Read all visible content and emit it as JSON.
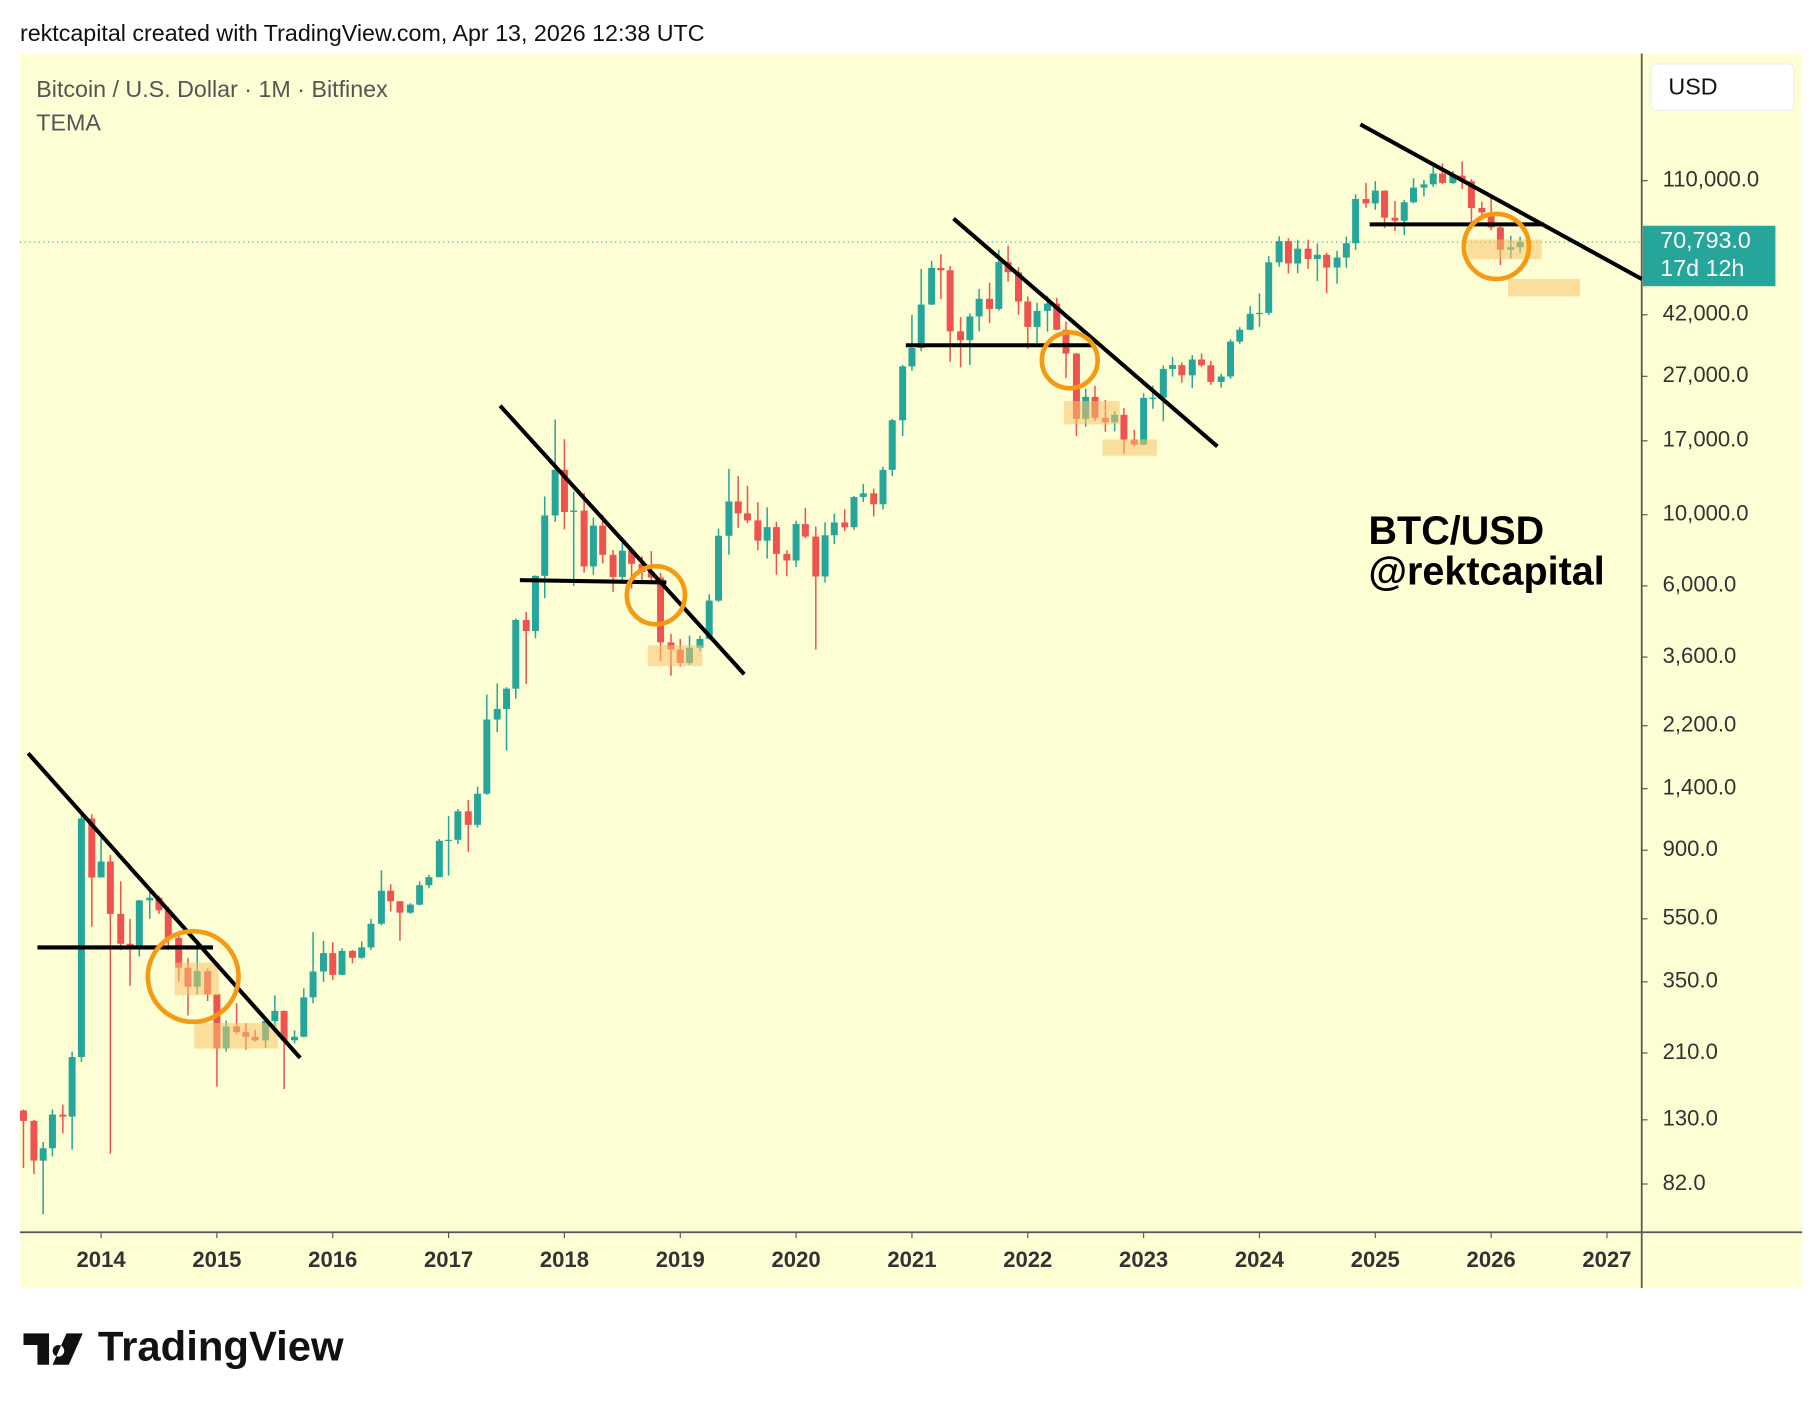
{
  "header": {
    "attribution": "rektcapital created with TradingView.com, Apr 13, 2026 12:38 UTC"
  },
  "chart_data": {
    "type": "candlestick",
    "title": "Bitcoin / U.S. Dollar · 1M · Bitfinex",
    "indicator": "TEMA",
    "currency": "USD",
    "x": [
      2013.33,
      2013.42,
      2013.5,
      2013.58,
      2013.67,
      2013.75,
      2013.83,
      2013.92,
      2014,
      2014.08,
      2014.17,
      2014.25,
      2014.33,
      2014.42,
      2014.5,
      2014.58,
      2014.67,
      2014.75,
      2014.83,
      2014.92,
      2015,
      2015.08,
      2015.17,
      2015.25,
      2015.33,
      2015.42,
      2015.5,
      2015.58,
      2015.67,
      2015.75,
      2015.83,
      2015.92,
      2016,
      2016.08,
      2016.17,
      2016.25,
      2016.33,
      2016.42,
      2016.5,
      2016.58,
      2016.67,
      2016.75,
      2016.83,
      2016.92,
      2017,
      2017.08,
      2017.17,
      2017.25,
      2017.33,
      2017.42,
      2017.5,
      2017.58,
      2017.67,
      2017.75,
      2017.83,
      2017.92,
      2018,
      2018.08,
      2018.17,
      2018.25,
      2018.33,
      2018.42,
      2018.5,
      2018.58,
      2018.67,
      2018.75,
      2018.83,
      2018.92,
      2019,
      2019.08,
      2019.17,
      2019.25,
      2019.33,
      2019.42,
      2019.5,
      2019.58,
      2019.67,
      2019.75,
      2019.83,
      2019.92,
      2020,
      2020.08,
      2020.17,
      2020.25,
      2020.33,
      2020.42,
      2020.5,
      2020.58,
      2020.67,
      2020.75,
      2020.83,
      2020.92,
      2021,
      2021.08,
      2021.17,
      2021.25,
      2021.33,
      2021.42,
      2021.5,
      2021.58,
      2021.67,
      2021.75,
      2021.83,
      2021.92,
      2022,
      2022.08,
      2022.17,
      2022.25,
      2022.33,
      2022.42,
      2022.5,
      2022.58,
      2022.67,
      2022.75,
      2022.83,
      2022.92,
      2023,
      2023.08,
      2023.17,
      2023.25,
      2023.33,
      2023.42,
      2023.5,
      2023.58,
      2023.67,
      2023.75,
      2023.83,
      2023.92,
      2024,
      2024.08,
      2024.17,
      2024.25,
      2024.33,
      2024.42,
      2024.5,
      2024.58,
      2024.67,
      2024.75,
      2024.83,
      2024.92,
      2025,
      2025.08,
      2025.17,
      2025.25,
      2025.33,
      2025.42,
      2025.5,
      2025.58,
      2025.67,
      2025.75,
      2025.83,
      2025.92,
      2026,
      2026.08,
      2026.17,
      2026.25
    ],
    "open": [
      139,
      129,
      97,
      106,
      135,
      133,
      204,
      1130,
      740,
      830,
      570,
      460,
      445,
      628,
      640,
      585,
      480,
      387,
      338,
      378,
      320,
      217,
      254,
      244,
      236,
      230,
      264,
      284,
      230,
      236,
      313,
      377,
      430,
      368,
      437,
      416,
      448,
      531,
      673,
      624,
      575,
      609,
      700,
      742,
      963,
      970,
      1190,
      1080,
      1350,
      2300,
      2480,
      2870,
      4700,
      4340,
      6450,
      9950,
      13800,
      10200,
      10300,
      6900,
      9250,
      7500,
      6400,
      7730,
      7030,
      6630,
      6370,
      4000,
      3800,
      3450,
      3850,
      4100,
      5400,
      8600,
      11000,
      10100,
      9600,
      8300,
      9150,
      7550,
      7200,
      9350,
      8550,
      6420,
      8630,
      9460,
      9140,
      11350,
      11660,
      10780,
      13800,
      19700,
      29000,
      33100,
      45200,
      58800,
      57800,
      37300,
      35000,
      41500,
      47100,
      43800,
      61300,
      57000,
      46200,
      38500,
      43200,
      45500,
      37700,
      31800,
      19900,
      23300,
      20050,
      19420,
      20490,
      17160,
      16540,
      23130,
      23150,
      28480,
      29260,
      27200,
      30470,
      29230,
      25940,
      26970,
      34650,
      37720,
      42280,
      42580,
      61200,
      71300,
      60700,
      67500,
      62700,
      64600,
      58970,
      63330,
      70200,
      96400,
      93400,
      102400,
      84300,
      82500,
      94200,
      104600,
      107100,
      115700,
      108200,
      114000,
      109500,
      90400,
      87600,
      78600,
      67000,
      68200
    ],
    "high": [
      140,
      130,
      111,
      140,
      145,
      212,
      1175,
      1165,
      1000,
      870,
      720,
      550,
      630,
      680,
      650,
      600,
      490,
      415,
      460,
      385,
      320,
      265,
      300,
      260,
      248,
      268,
      318,
      285,
      247,
      334,
      500,
      470,
      465,
      445,
      440,
      468,
      550,
      780,
      705,
      625,
      615,
      720,
      755,
      975,
      1150,
      1210,
      1290,
      1420,
      2750,
      2980,
      2900,
      4750,
      4980,
      6470,
      11400,
      19800,
      17200,
      11800,
      11700,
      9800,
      9990,
      7770,
      8500,
      7760,
      7420,
      7700,
      6600,
      4250,
      4100,
      4200,
      4200,
      5650,
      9050,
      13900,
      13200,
      12300,
      10950,
      10550,
      9510,
      7750,
      9580,
      10500,
      9180,
      9470,
      10080,
      10400,
      11450,
      12470,
      12070,
      14100,
      19900,
      29300,
      41950,
      58350,
      61800,
      64900,
      59600,
      41300,
      42400,
      50500,
      52900,
      67000,
      69000,
      59100,
      47900,
      45800,
      48200,
      47400,
      40000,
      31900,
      24700,
      25200,
      22800,
      21000,
      21500,
      18400,
      23900,
      25250,
      29200,
      31000,
      29850,
      31400,
      31800,
      30200,
      27500,
      35200,
      38450,
      44700,
      48970,
      64000,
      73800,
      72800,
      71950,
      72000,
      70000,
      65600,
      66500,
      73600,
      99800,
      108300,
      109600,
      102500,
      95000,
      95800,
      111900,
      110500,
      123200,
      124500,
      117900,
      126200,
      111200,
      94600,
      97900,
      79500,
      74000,
      73500
    ],
    "low": [
      92,
      88,
      66,
      100,
      118,
      105,
      197,
      520,
      740,
      102,
      440,
      340,
      420,
      550,
      570,
      440,
      350,
      275,
      320,
      305,
      165,
      212,
      240,
      215,
      228,
      218,
      253,
      162,
      225,
      235,
      300,
      350,
      355,
      368,
      400,
      413,
      440,
      525,
      580,
      470,
      570,
      605,
      685,
      742,
      750,
      940,
      890,
      1060,
      1340,
      2100,
      1840,
      2670,
      2970,
      4120,
      5500,
      9500,
      9000,
      6000,
      6600,
      6500,
      7050,
      5750,
      6100,
      5880,
      6100,
      6200,
      3500,
      3150,
      3360,
      3400,
      3750,
      4080,
      5350,
      7500,
      9100,
      9400,
      7750,
      7300,
      6500,
      6430,
      6880,
      8450,
      3800,
      6150,
      8100,
      8900,
      8970,
      10950,
      9880,
      10380,
      13200,
      17600,
      28100,
      32400,
      45000,
      47000,
      30000,
      28800,
      29300,
      37300,
      39600,
      43300,
      53300,
      42000,
      32900,
      34300,
      37200,
      37600,
      26700,
      17600,
      18800,
      19600,
      18150,
      18200,
      15500,
      16300,
      16500,
      21400,
      19550,
      26950,
      25800,
      24800,
      28900,
      25400,
      24900,
      26550,
      34100,
      37600,
      38550,
      41900,
      59300,
      56500,
      56600,
      58400,
      53500,
      49000,
      52500,
      58900,
      66900,
      90500,
      89200,
      78200,
      76600,
      74500,
      93400,
      98200,
      105300,
      107300,
      107300,
      103500,
      80600,
      84400,
      77000,
      60000,
      63000,
      65500
    ],
    "close": [
      129,
      97,
      106,
      135,
      133,
      204,
      1130,
      740,
      830,
      570,
      460,
      445,
      628,
      640,
      585,
      480,
      387,
      338,
      378,
      320,
      217,
      254,
      244,
      236,
      230,
      264,
      284,
      230,
      236,
      313,
      377,
      430,
      368,
      437,
      416,
      448,
      531,
      673,
      624,
      575,
      609,
      700,
      742,
      963,
      970,
      1190,
      1080,
      1350,
      2300,
      2480,
      2870,
      4700,
      4340,
      6450,
      9950,
      13800,
      10200,
      10300,
      6900,
      9250,
      7500,
      6400,
      7730,
      7030,
      6630,
      6370,
      4000,
      3800,
      3450,
      3850,
      4100,
      5400,
      8600,
      11000,
      10100,
      9600,
      8300,
      9150,
      7550,
      7200,
      9350,
      8550,
      6420,
      8630,
      9460,
      9140,
      11350,
      11660,
      10780,
      13800,
      19700,
      29000,
      33100,
      45200,
      58800,
      57800,
      37300,
      35000,
      41500,
      47100,
      43800,
      61300,
      57000,
      46200,
      38500,
      43200,
      45500,
      37700,
      31800,
      19900,
      23300,
      20050,
      19420,
      20490,
      17160,
      16540,
      23130,
      23150,
      28480,
      29260,
      27200,
      30470,
      29230,
      25940,
      26970,
      34650,
      37720,
      42280,
      42580,
      61200,
      71300,
      60700,
      67500,
      62700,
      64600,
      58970,
      63330,
      70200,
      96400,
      93400,
      102400,
      84300,
      82500,
      94200,
      104600,
      107100,
      115700,
      108200,
      114000,
      109500,
      90400,
      87600,
      78600,
      67000,
      68200,
      70793
    ],
    "up_color": "#26a69a",
    "down_color": "#ef5350",
    "log_scale": true,
    "xlim": [
      2013.3,
      2027.3
    ],
    "xticks": [
      2014,
      2015,
      2016,
      2017,
      2018,
      2019,
      2020,
      2021,
      2022,
      2023,
      2024,
      2025,
      2026,
      2027
    ],
    "ylim": [
      58,
      274000
    ],
    "yticks": [
      {
        "value": 82,
        "label": "82.0"
      },
      {
        "value": 130,
        "label": "130.0"
      },
      {
        "value": 210,
        "label": "210.0"
      },
      {
        "value": 350,
        "label": "350.0"
      },
      {
        "value": 550,
        "label": "550.0"
      },
      {
        "value": 900,
        "label": "900.0"
      },
      {
        "value": 1400,
        "label": "1,400.0"
      },
      {
        "value": 2200,
        "label": "2,200.0"
      },
      {
        "value": 3600,
        "label": "3,600.0"
      },
      {
        "value": 6000,
        "label": "6,000.0"
      },
      {
        "value": 10000,
        "label": "10,000.0"
      },
      {
        "value": 17000,
        "label": "17,000.0"
      },
      {
        "value": 27000,
        "label": "27,000.0"
      },
      {
        "value": 42000,
        "label": "42,000.0"
      },
      {
        "value": 110000,
        "label": "110,000.0"
      }
    ],
    "last_price": {
      "value": 70793,
      "label": "70,793.0"
    },
    "countdown": "17d 12h",
    "annotations": [
      "BTC/USD",
      "@rektcapital"
    ]
  },
  "footer": {
    "logo_text": "TradingView"
  }
}
